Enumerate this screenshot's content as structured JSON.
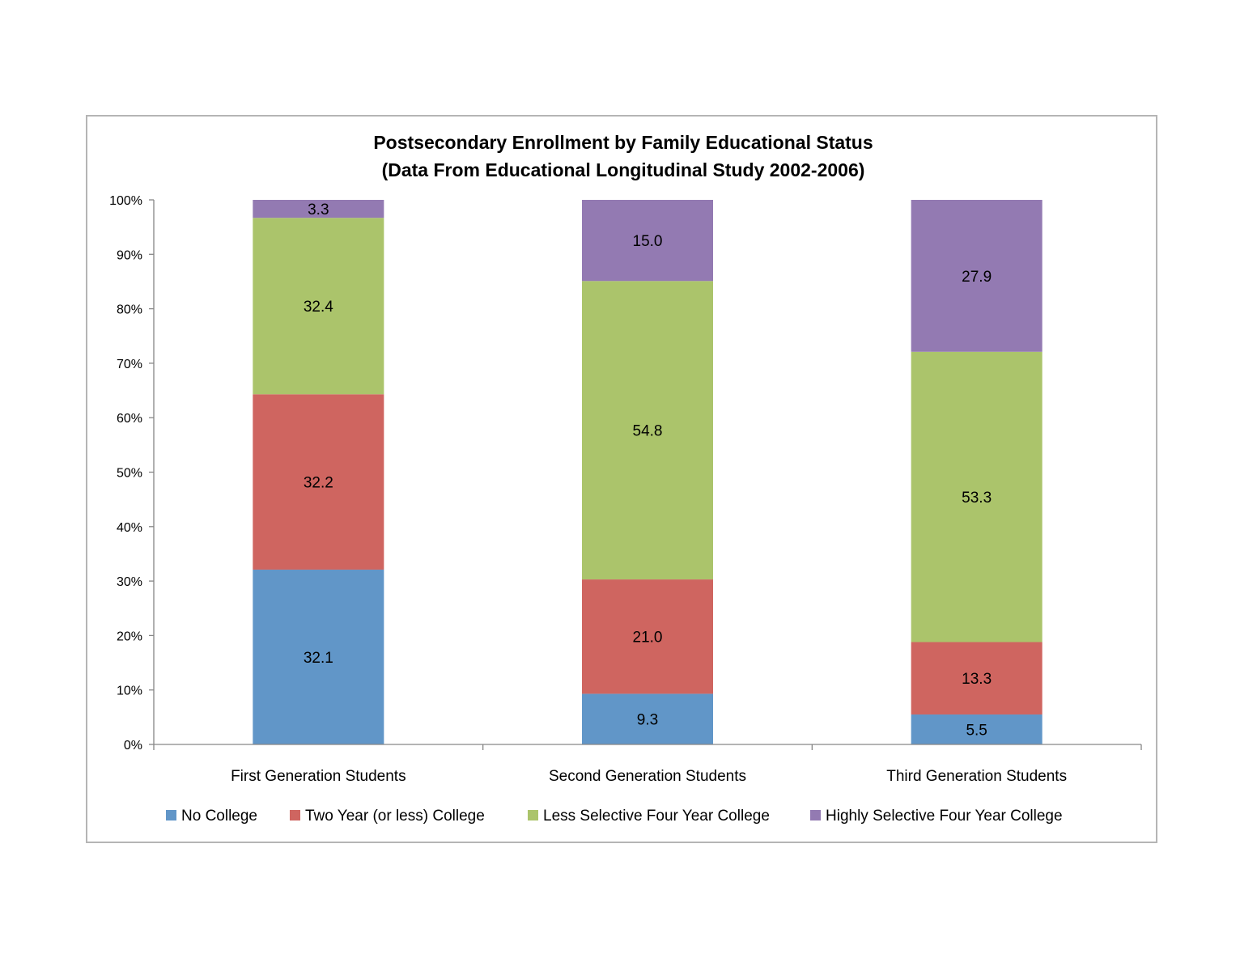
{
  "chart_data": {
    "type": "bar",
    "stacked": true,
    "title": "Postsecondary Enrollment by Family Educational Status",
    "subtitle": "(Data From Educational Longitudinal Study 2002-2006)",
    "categories": [
      "First Generation Students",
      "Second Generation Students",
      "Third Generation Students"
    ],
    "series": [
      {
        "name": "No College",
        "color": "#6196c8",
        "values": [
          32.1,
          9.3,
          5.5
        ]
      },
      {
        "name": "Two Year (or less) College",
        "color": "#cf6560",
        "values": [
          32.2,
          21.0,
          13.3
        ]
      },
      {
        "name": "Less Selective Four Year College",
        "color": "#abc46b",
        "values": [
          32.4,
          54.8,
          53.3
        ]
      },
      {
        "name": "Highly Selective Four Year College",
        "color": "#937ab2",
        "values": [
          3.3,
          15.0,
          27.9
        ]
      }
    ],
    "data_labels": [
      [
        "32.1",
        "9.3",
        "5.5"
      ],
      [
        "32.2",
        "21.0",
        "13.3"
      ],
      [
        "32.4",
        "54.8",
        "53.3"
      ],
      [
        "3.3",
        "15.0",
        "27.9"
      ]
    ],
    "y_tick_labels": [
      "0%",
      "10%",
      "20%",
      "30%",
      "40%",
      "50%",
      "60%",
      "70%",
      "80%",
      "90%",
      "100%"
    ],
    "ylim": [
      0,
      100
    ],
    "grid": false,
    "legend_position": "bottom",
    "xlabel": "",
    "ylabel": ""
  }
}
